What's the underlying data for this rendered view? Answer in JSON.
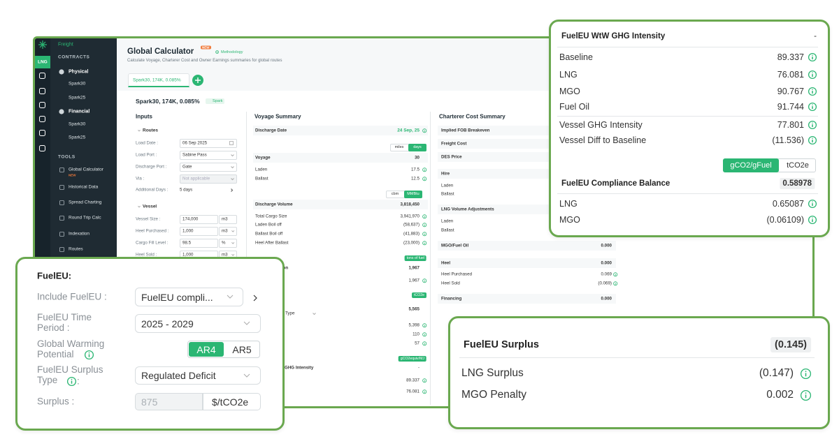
{
  "sidebar": {
    "brand": "Freight",
    "contracts": "CONTRACTS",
    "tag": "LNG",
    "physical": "Physical",
    "physical_items": [
      "Spark30",
      "Spark25"
    ],
    "financial": "Financial",
    "financial_items": [
      "Spark30",
      "Spark25"
    ],
    "tools": "TOOLS",
    "tool_items": [
      "Global Calculator",
      "Historical Data",
      "Spread Charting",
      "Round Trip Calc",
      "Indexation",
      "Routes"
    ],
    "new_badge": "NEW"
  },
  "header": {
    "title": "Global Calculator",
    "badge": "NEW",
    "methodology": "Methodology",
    "subtitle": "Calculate Voyage, Charterer Cost and Owner Earnings summaries for global routes",
    "tab": "Spark30, 174K, 0.085%",
    "route_title": "Spark30, 174K, 0.085%",
    "spark_tag": "Spark"
  },
  "inputs": {
    "title": "Inputs",
    "routes": "Routes",
    "fields": [
      {
        "label": "Load Date :",
        "value": "06 Sep 2025"
      },
      {
        "label": "Load Port :",
        "value": "Sabine Pass"
      },
      {
        "label": "Discharge Port :",
        "value": "Gate"
      },
      {
        "label": "Via :",
        "value": "Not applicable"
      },
      {
        "label": "Additional Days :",
        "value": "5 days"
      }
    ],
    "vessel": "Vessel",
    "vessel_fields": [
      {
        "label": "Vessel Size :",
        "value": "174,000",
        "unit": "m3"
      },
      {
        "label": "Heel Purchased :",
        "value": "1,000",
        "unit": "m3"
      },
      {
        "label": "Cargo Fill Level :",
        "value": "98.5",
        "unit": "%"
      },
      {
        "label": "Heel Sold :",
        "value": "1,000",
        "unit": "m3"
      }
    ]
  },
  "voyage": {
    "title": "Voyage Summary",
    "discharge_date": {
      "label": "Discharge Date",
      "value": "24 Sep, 25"
    },
    "toggle1": [
      "miles",
      "days"
    ],
    "voyage": {
      "label": "Voyage",
      "value": "30"
    },
    "voyage_rows": [
      {
        "label": "Laden",
        "value": "17.5"
      },
      {
        "label": "Ballast",
        "value": "12.5"
      }
    ],
    "toggle2": [
      "cbm",
      "MMBtu"
    ],
    "discharge_volume": {
      "label": "Discharge Volume",
      "value": "3,818,450"
    },
    "volume_rows": [
      {
        "label": "Total Cargo Size",
        "value": "3,941,970"
      },
      {
        "label": "Laden Boil off",
        "value": "(58,637)"
      },
      {
        "label": "Ballast Boil off",
        "value": "(41,883)"
      },
      {
        "label": "Heel After Ballast",
        "value": "(23,000)"
      }
    ],
    "fuel_tag": "tons of fuel",
    "consumption": {
      "label": "ption",
      "value": "1,967"
    },
    "consumption_row": "1,967",
    "emissions_tag": "tCO2e",
    "emissions_total": "5,565",
    "type_label": "Type",
    "emission_rows": [
      "5,398",
      "110",
      "57"
    ],
    "intensity_tag": "gCO2equiv/MJ",
    "intensity": {
      "label": "GHG Intensity",
      "value": "-"
    },
    "intensity_rows": [
      "89.337",
      "76.081"
    ]
  },
  "charterer": {
    "title": "Charterer Cost Summary",
    "headers": [
      "Implied FOB Breakeven",
      "Freight Cost",
      "DES Price"
    ],
    "hire": "Hire",
    "hire_rows": [
      "Laden",
      "Ballast"
    ],
    "lng_adj": "LNG Volume Adjustments",
    "lng_adj_rows": [
      "Laden",
      "Ballast"
    ],
    "mgo": {
      "label": "MGO/Fuel Oil",
      "value": "0.000"
    },
    "heel": {
      "label": "Heel",
      "value": "0.000"
    },
    "heel_rows": [
      {
        "label": "Heel Purchased",
        "value": "0.069"
      },
      {
        "label": "Heel Sold",
        "value": "(0.069)"
      }
    ],
    "financing": {
      "label": "Financing",
      "value": "0.000"
    }
  },
  "intensity_card": {
    "title": "FuelEU WtW GHG Intensity",
    "title_value": "-",
    "rows": [
      {
        "label": "Baseline",
        "value": "89.337"
      },
      {
        "label": "LNG",
        "value": "76.081"
      },
      {
        "label": "MGO",
        "value": "90.767"
      },
      {
        "label": "Fuel Oil",
        "value": "91.744"
      }
    ],
    "vessel_rows": [
      {
        "label": "Vessel GHG Intensity",
        "value": "77.801"
      },
      {
        "label": "Vessel Diff to Baseline",
        "value": "(11.536)"
      }
    ],
    "toggle": [
      "gCO2/gFuel",
      "tCO2e"
    ],
    "balance": {
      "label": "FuelEU Compliance Balance",
      "value": "0.58978"
    },
    "balance_rows": [
      {
        "label": "LNG",
        "value": "0.65087"
      },
      {
        "label": "MGO",
        "value": "(0.06109)"
      }
    ]
  },
  "settings_card": {
    "title": "FuelEU:",
    "include": {
      "label": "Include FuelEU :",
      "value": "FuelEU compli..."
    },
    "period": {
      "label": "FuelEU Time Period :",
      "value": "2025 - 2029"
    },
    "gwp": {
      "label": "Global Warming Potential",
      "options": [
        "AR4",
        "AR5"
      ]
    },
    "surplus_type": {
      "label": "FuelEU Surplus Type",
      "colon": ":",
      "value": "Regulated Deficit"
    },
    "surplus": {
      "label": "Surplus :",
      "value": "875",
      "unit": "$/tCO2e"
    }
  },
  "surplus_card": {
    "title": "FuelEU Surplus",
    "value": "(0.145)",
    "rows": [
      {
        "label": "LNG Surplus",
        "value": "(0.147)"
      },
      {
        "label": "MGO Penalty",
        "value": "0.002"
      }
    ]
  }
}
